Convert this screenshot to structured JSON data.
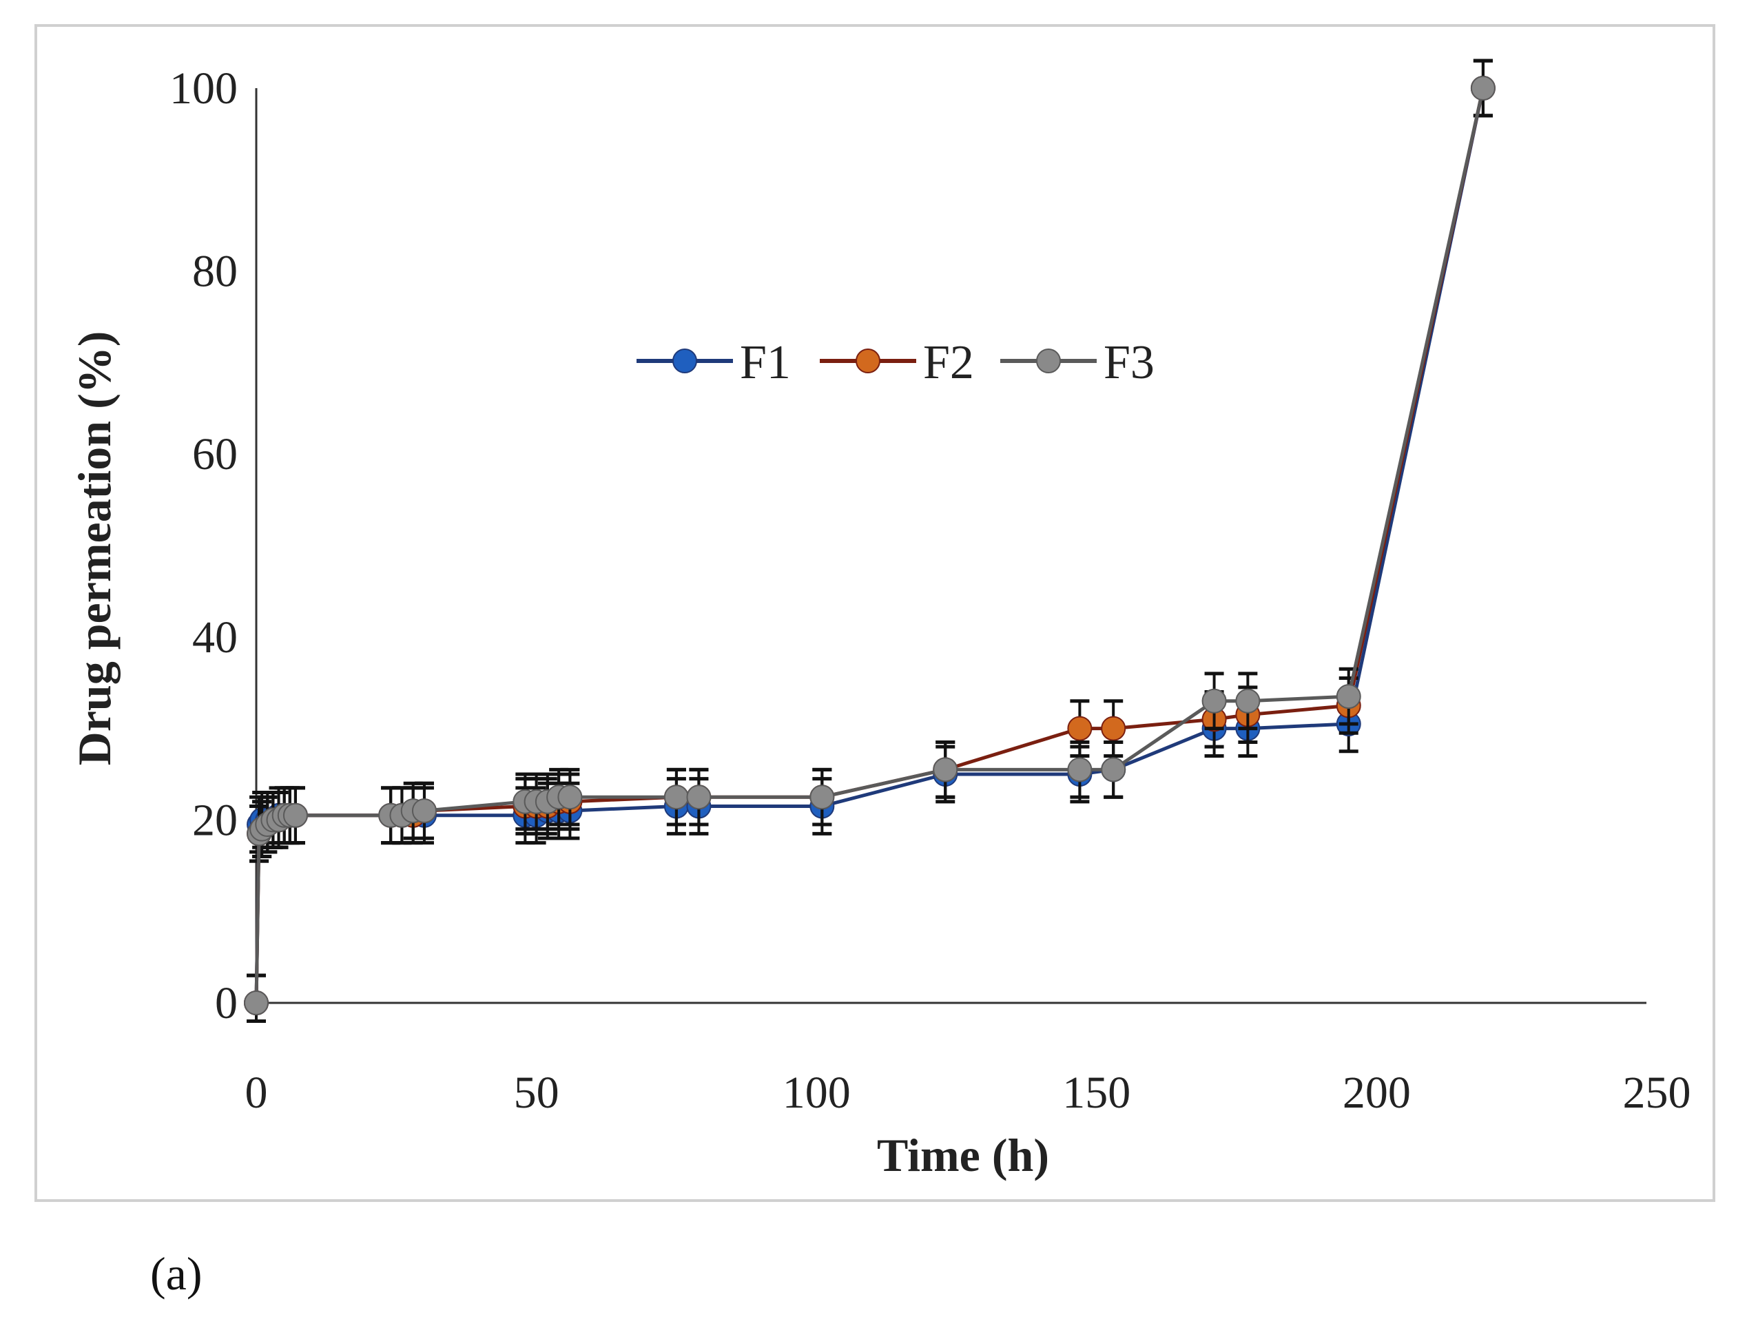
{
  "panel_label": "(a)",
  "chart_data": {
    "type": "line",
    "title": "",
    "xlabel": "Time (h)",
    "ylabel": "Drug permeation (%)",
    "xlim": [
      0,
      250
    ],
    "ylim": [
      0,
      100
    ],
    "xticks": [
      0,
      50,
      100,
      150,
      200,
      250
    ],
    "yticks": [
      0,
      20,
      40,
      60,
      80,
      100
    ],
    "grid": false,
    "legend_position": "center",
    "x": [
      0,
      0.5,
      1,
      2,
      3,
      4,
      5,
      6,
      7,
      24,
      26,
      28,
      30,
      48,
      50,
      52,
      54,
      56,
      75,
      79,
      101,
      123,
      147,
      153,
      171,
      177,
      195,
      219
    ],
    "series": [
      {
        "name": "F1",
        "color": "#1f5fbf",
        "line_color": "#1f3a7a",
        "values": [
          0,
          19.5,
          20,
          20,
          20,
          20.5,
          20.5,
          20.5,
          20.5,
          20.5,
          20.5,
          20.5,
          20.5,
          20.5,
          20.5,
          21,
          21,
          21,
          21.5,
          21.5,
          21.5,
          25,
          25,
          25.5,
          30,
          30,
          30.5,
          100
        ],
        "errors": [
          3,
          3,
          3,
          3,
          3,
          3,
          3,
          3,
          3,
          3,
          3,
          3,
          3,
          3,
          3,
          3,
          3,
          3,
          3,
          3,
          3,
          3,
          3,
          3,
          3,
          3,
          3,
          3
        ]
      },
      {
        "name": "F2",
        "color": "#d2691e",
        "line_color": "#7a1f10",
        "values": [
          0,
          18.5,
          19,
          19.5,
          20,
          20,
          20.5,
          20.5,
          20.5,
          20.5,
          20.5,
          20.5,
          21,
          21.5,
          21.5,
          21.5,
          22,
          22,
          22.5,
          22.5,
          22.5,
          25.5,
          30,
          30,
          31,
          31.5,
          32.5,
          100
        ],
        "errors": [
          3,
          3,
          3,
          3,
          3,
          3,
          3,
          3,
          3,
          3,
          3,
          3,
          3,
          3,
          3,
          3,
          3,
          3,
          3,
          3,
          3,
          3,
          3,
          3,
          3,
          3,
          3,
          3
        ]
      },
      {
        "name": "F3",
        "color": "#8a8a8a",
        "line_color": "#5a5a5a",
        "values": [
          0,
          18.5,
          19,
          19.5,
          20,
          20,
          20.5,
          20.5,
          20.5,
          20.5,
          20.5,
          21,
          21,
          22,
          22,
          22,
          22.5,
          22.5,
          22.5,
          22.5,
          22.5,
          25.5,
          25.5,
          25.5,
          33,
          33,
          33.5,
          100
        ],
        "errors": [
          3,
          3,
          3,
          3,
          3,
          3,
          3,
          3,
          3,
          3,
          3,
          3,
          3,
          3,
          3,
          3,
          3,
          3,
          3,
          3,
          3,
          3,
          3,
          3,
          3,
          3,
          3,
          3
        ]
      }
    ]
  }
}
